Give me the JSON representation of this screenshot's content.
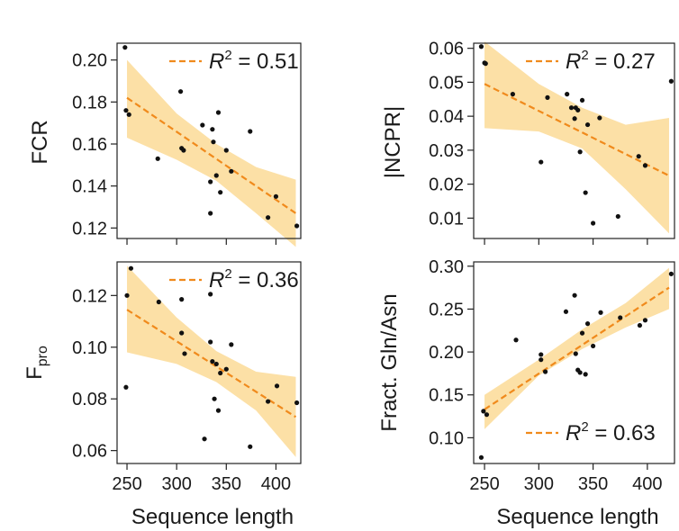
{
  "colors": {
    "band": "#fce0a6",
    "fit": "#f08a1c",
    "point": "#111111",
    "axis": "#222222"
  },
  "chart_data": [
    {
      "type": "scatter",
      "id": "fcr",
      "ylabel": "FCR",
      "xlabel": "",
      "xlim": [
        240,
        425
      ],
      "ylim": [
        0.115,
        0.208
      ],
      "xticks": [
        250,
        300,
        350,
        400
      ],
      "show_xtick_labels": false,
      "yticks": [
        0.12,
        0.14,
        0.16,
        0.18,
        0.2
      ],
      "ytick_labels": [
        "0.12",
        "0.14",
        "0.16",
        "0.18",
        "0.20"
      ],
      "legend": {
        "label_prefix": "R",
        "label_sup": "2",
        "label_rest": " = 0.51",
        "position": "top-right"
      },
      "fit": {
        "x": [
          250,
          420
        ],
        "y": [
          0.182,
          0.127
        ]
      },
      "band": {
        "x": [
          250,
          300,
          340,
          380,
          420
        ],
        "upper": [
          0.2,
          0.1745,
          0.16,
          0.149,
          0.143
        ],
        "lower": [
          0.163,
          0.1525,
          0.1425,
          0.127,
          0.111
        ]
      },
      "points": [
        {
          "x": 248,
          "y": 0.206
        },
        {
          "x": 249,
          "y": 0.176
        },
        {
          "x": 252,
          "y": 0.174
        },
        {
          "x": 281,
          "y": 0.153
        },
        {
          "x": 304,
          "y": 0.185
        },
        {
          "x": 305,
          "y": 0.158
        },
        {
          "x": 307,
          "y": 0.157
        },
        {
          "x": 326,
          "y": 0.169
        },
        {
          "x": 334,
          "y": 0.142
        },
        {
          "x": 334,
          "y": 0.127
        },
        {
          "x": 336,
          "y": 0.167
        },
        {
          "x": 337,
          "y": 0.161
        },
        {
          "x": 340,
          "y": 0.145
        },
        {
          "x": 342,
          "y": 0.175
        },
        {
          "x": 344,
          "y": 0.137
        },
        {
          "x": 350,
          "y": 0.157
        },
        {
          "x": 355,
          "y": 0.147
        },
        {
          "x": 374,
          "y": 0.166
        },
        {
          "x": 392,
          "y": 0.125
        },
        {
          "x": 400,
          "y": 0.135
        },
        {
          "x": 421,
          "y": 0.121
        }
      ]
    },
    {
      "type": "scatter",
      "id": "ncpr",
      "ylabel": "|NCPR|",
      "xlabel": "",
      "xlim": [
        240,
        425
      ],
      "ylim": [
        0.004,
        0.0615
      ],
      "xticks": [
        250,
        300,
        350,
        400
      ],
      "show_xtick_labels": false,
      "yticks": [
        0.01,
        0.02,
        0.03,
        0.04,
        0.05,
        0.06
      ],
      "ytick_labels": [
        "0.01",
        "0.02",
        "0.03",
        "0.04",
        "0.05",
        "0.06"
      ],
      "legend": {
        "label_prefix": "R",
        "label_sup": "2",
        "label_rest": " = 0.27",
        "position": "top-right"
      },
      "fit": {
        "x": [
          250,
          420
        ],
        "y": [
          0.0495,
          0.0225
        ]
      },
      "band": {
        "x": [
          250,
          300,
          340,
          380,
          420
        ],
        "upper": [
          0.062,
          0.0495,
          0.0425,
          0.0375,
          0.0395
        ],
        "lower": [
          0.0365,
          0.0355,
          0.0305,
          0.0185,
          0.0055
        ]
      },
      "points": [
        {
          "x": 247,
          "y": 0.0605
        },
        {
          "x": 250,
          "y": 0.0557
        },
        {
          "x": 251,
          "y": 0.0555
        },
        {
          "x": 276,
          "y": 0.0465
        },
        {
          "x": 302,
          "y": 0.0265
        },
        {
          "x": 308,
          "y": 0.0455
        },
        {
          "x": 326,
          "y": 0.0465
        },
        {
          "x": 330,
          "y": 0.0425
        },
        {
          "x": 333,
          "y": 0.0393
        },
        {
          "x": 334,
          "y": 0.0425
        },
        {
          "x": 336,
          "y": 0.0418
        },
        {
          "x": 338,
          "y": 0.0295
        },
        {
          "x": 340,
          "y": 0.0447
        },
        {
          "x": 343,
          "y": 0.0175
        },
        {
          "x": 345,
          "y": 0.0375
        },
        {
          "x": 350,
          "y": 0.0085
        },
        {
          "x": 356,
          "y": 0.0395
        },
        {
          "x": 373,
          "y": 0.0105
        },
        {
          "x": 392,
          "y": 0.0282
        },
        {
          "x": 398,
          "y": 0.0255
        },
        {
          "x": 422,
          "y": 0.0503
        }
      ]
    },
    {
      "type": "scatter",
      "id": "fpro",
      "ylabel": "F",
      "ylabel_sub": "pro",
      "xlabel": "Sequence length",
      "xlim": [
        240,
        425
      ],
      "ylim": [
        0.055,
        0.133
      ],
      "xticks": [
        250,
        300,
        350,
        400
      ],
      "show_xtick_labels": true,
      "xtick_labels": [
        "250",
        "300",
        "350",
        "400"
      ],
      "yticks": [
        0.06,
        0.08,
        0.1,
        0.12
      ],
      "ytick_labels": [
        "0.06",
        "0.08",
        "0.10",
        "0.12"
      ],
      "legend": {
        "label_prefix": "R",
        "label_sup": "2",
        "label_rest": " = 0.36",
        "position": "top-right"
      },
      "fit": {
        "x": [
          250,
          420
        ],
        "y": [
          0.1145,
          0.073
        ]
      },
      "band": {
        "x": [
          250,
          300,
          340,
          380,
          420
        ],
        "upper": [
          0.1315,
          0.1115,
          0.0985,
          0.0905,
          0.0885
        ],
        "lower": [
          0.098,
          0.0935,
          0.0865,
          0.0755,
          0.0575
        ]
      },
      "points": [
        {
          "x": 249,
          "y": 0.0845
        },
        {
          "x": 250,
          "y": 0.12
        },
        {
          "x": 254,
          "y": 0.1305
        },
        {
          "x": 282,
          "y": 0.1175
        },
        {
          "x": 305,
          "y": 0.1185
        },
        {
          "x": 305,
          "y": 0.1055
        },
        {
          "x": 308,
          "y": 0.0975
        },
        {
          "x": 328,
          "y": 0.0645
        },
        {
          "x": 334,
          "y": 0.102
        },
        {
          "x": 334,
          "y": 0.1205
        },
        {
          "x": 336,
          "y": 0.0945
        },
        {
          "x": 338,
          "y": 0.08
        },
        {
          "x": 340,
          "y": 0.0935
        },
        {
          "x": 342,
          "y": 0.0755
        },
        {
          "x": 344,
          "y": 0.09
        },
        {
          "x": 350,
          "y": 0.0915
        },
        {
          "x": 355,
          "y": 0.101
        },
        {
          "x": 374,
          "y": 0.0615
        },
        {
          "x": 392,
          "y": 0.079
        },
        {
          "x": 401,
          "y": 0.085
        },
        {
          "x": 421,
          "y": 0.0785
        }
      ]
    },
    {
      "type": "scatter",
      "id": "glnasn",
      "ylabel": "Fract. Gln/Asn",
      "xlabel": "Sequence length",
      "xlim": [
        240,
        425
      ],
      "ylim": [
        0.07,
        0.305
      ],
      "xticks": [
        250,
        300,
        350,
        400
      ],
      "show_xtick_labels": true,
      "xtick_labels": [
        "250",
        "300",
        "350",
        "400"
      ],
      "yticks": [
        0.1,
        0.15,
        0.2,
        0.25,
        0.3
      ],
      "ytick_labels": [
        "0.10",
        "0.15",
        "0.20",
        "0.25",
        "0.30"
      ],
      "legend": {
        "label_prefix": "R",
        "label_sup": "2",
        "label_rest": " = 0.63",
        "position": "bottom-right"
      },
      "fit": {
        "x": [
          250,
          420
        ],
        "y": [
          0.133,
          0.275
        ]
      },
      "band": {
        "x": [
          250,
          300,
          340,
          380,
          420
        ],
        "upper": [
          0.15,
          0.191,
          0.2265,
          0.257,
          0.298
        ],
        "lower": [
          0.11,
          0.1725,
          0.2035,
          0.2285,
          0.25
        ]
      },
      "points": [
        {
          "x": 247,
          "y": 0.077
        },
        {
          "x": 249,
          "y": 0.131
        },
        {
          "x": 252,
          "y": 0.127
        },
        {
          "x": 279,
          "y": 0.214
        },
        {
          "x": 302,
          "y": 0.197
        },
        {
          "x": 302,
          "y": 0.191
        },
        {
          "x": 306,
          "y": 0.177
        },
        {
          "x": 325,
          "y": 0.247
        },
        {
          "x": 333,
          "y": 0.266
        },
        {
          "x": 334,
          "y": 0.198
        },
        {
          "x": 336,
          "y": 0.179
        },
        {
          "x": 338,
          "y": 0.176
        },
        {
          "x": 340,
          "y": 0.222
        },
        {
          "x": 343,
          "y": 0.174
        },
        {
          "x": 345,
          "y": 0.233
        },
        {
          "x": 350,
          "y": 0.207
        },
        {
          "x": 357,
          "y": 0.246
        },
        {
          "x": 375,
          "y": 0.24
        },
        {
          "x": 393,
          "y": 0.231
        },
        {
          "x": 398,
          "y": 0.237
        },
        {
          "x": 422,
          "y": 0.291
        }
      ]
    }
  ]
}
